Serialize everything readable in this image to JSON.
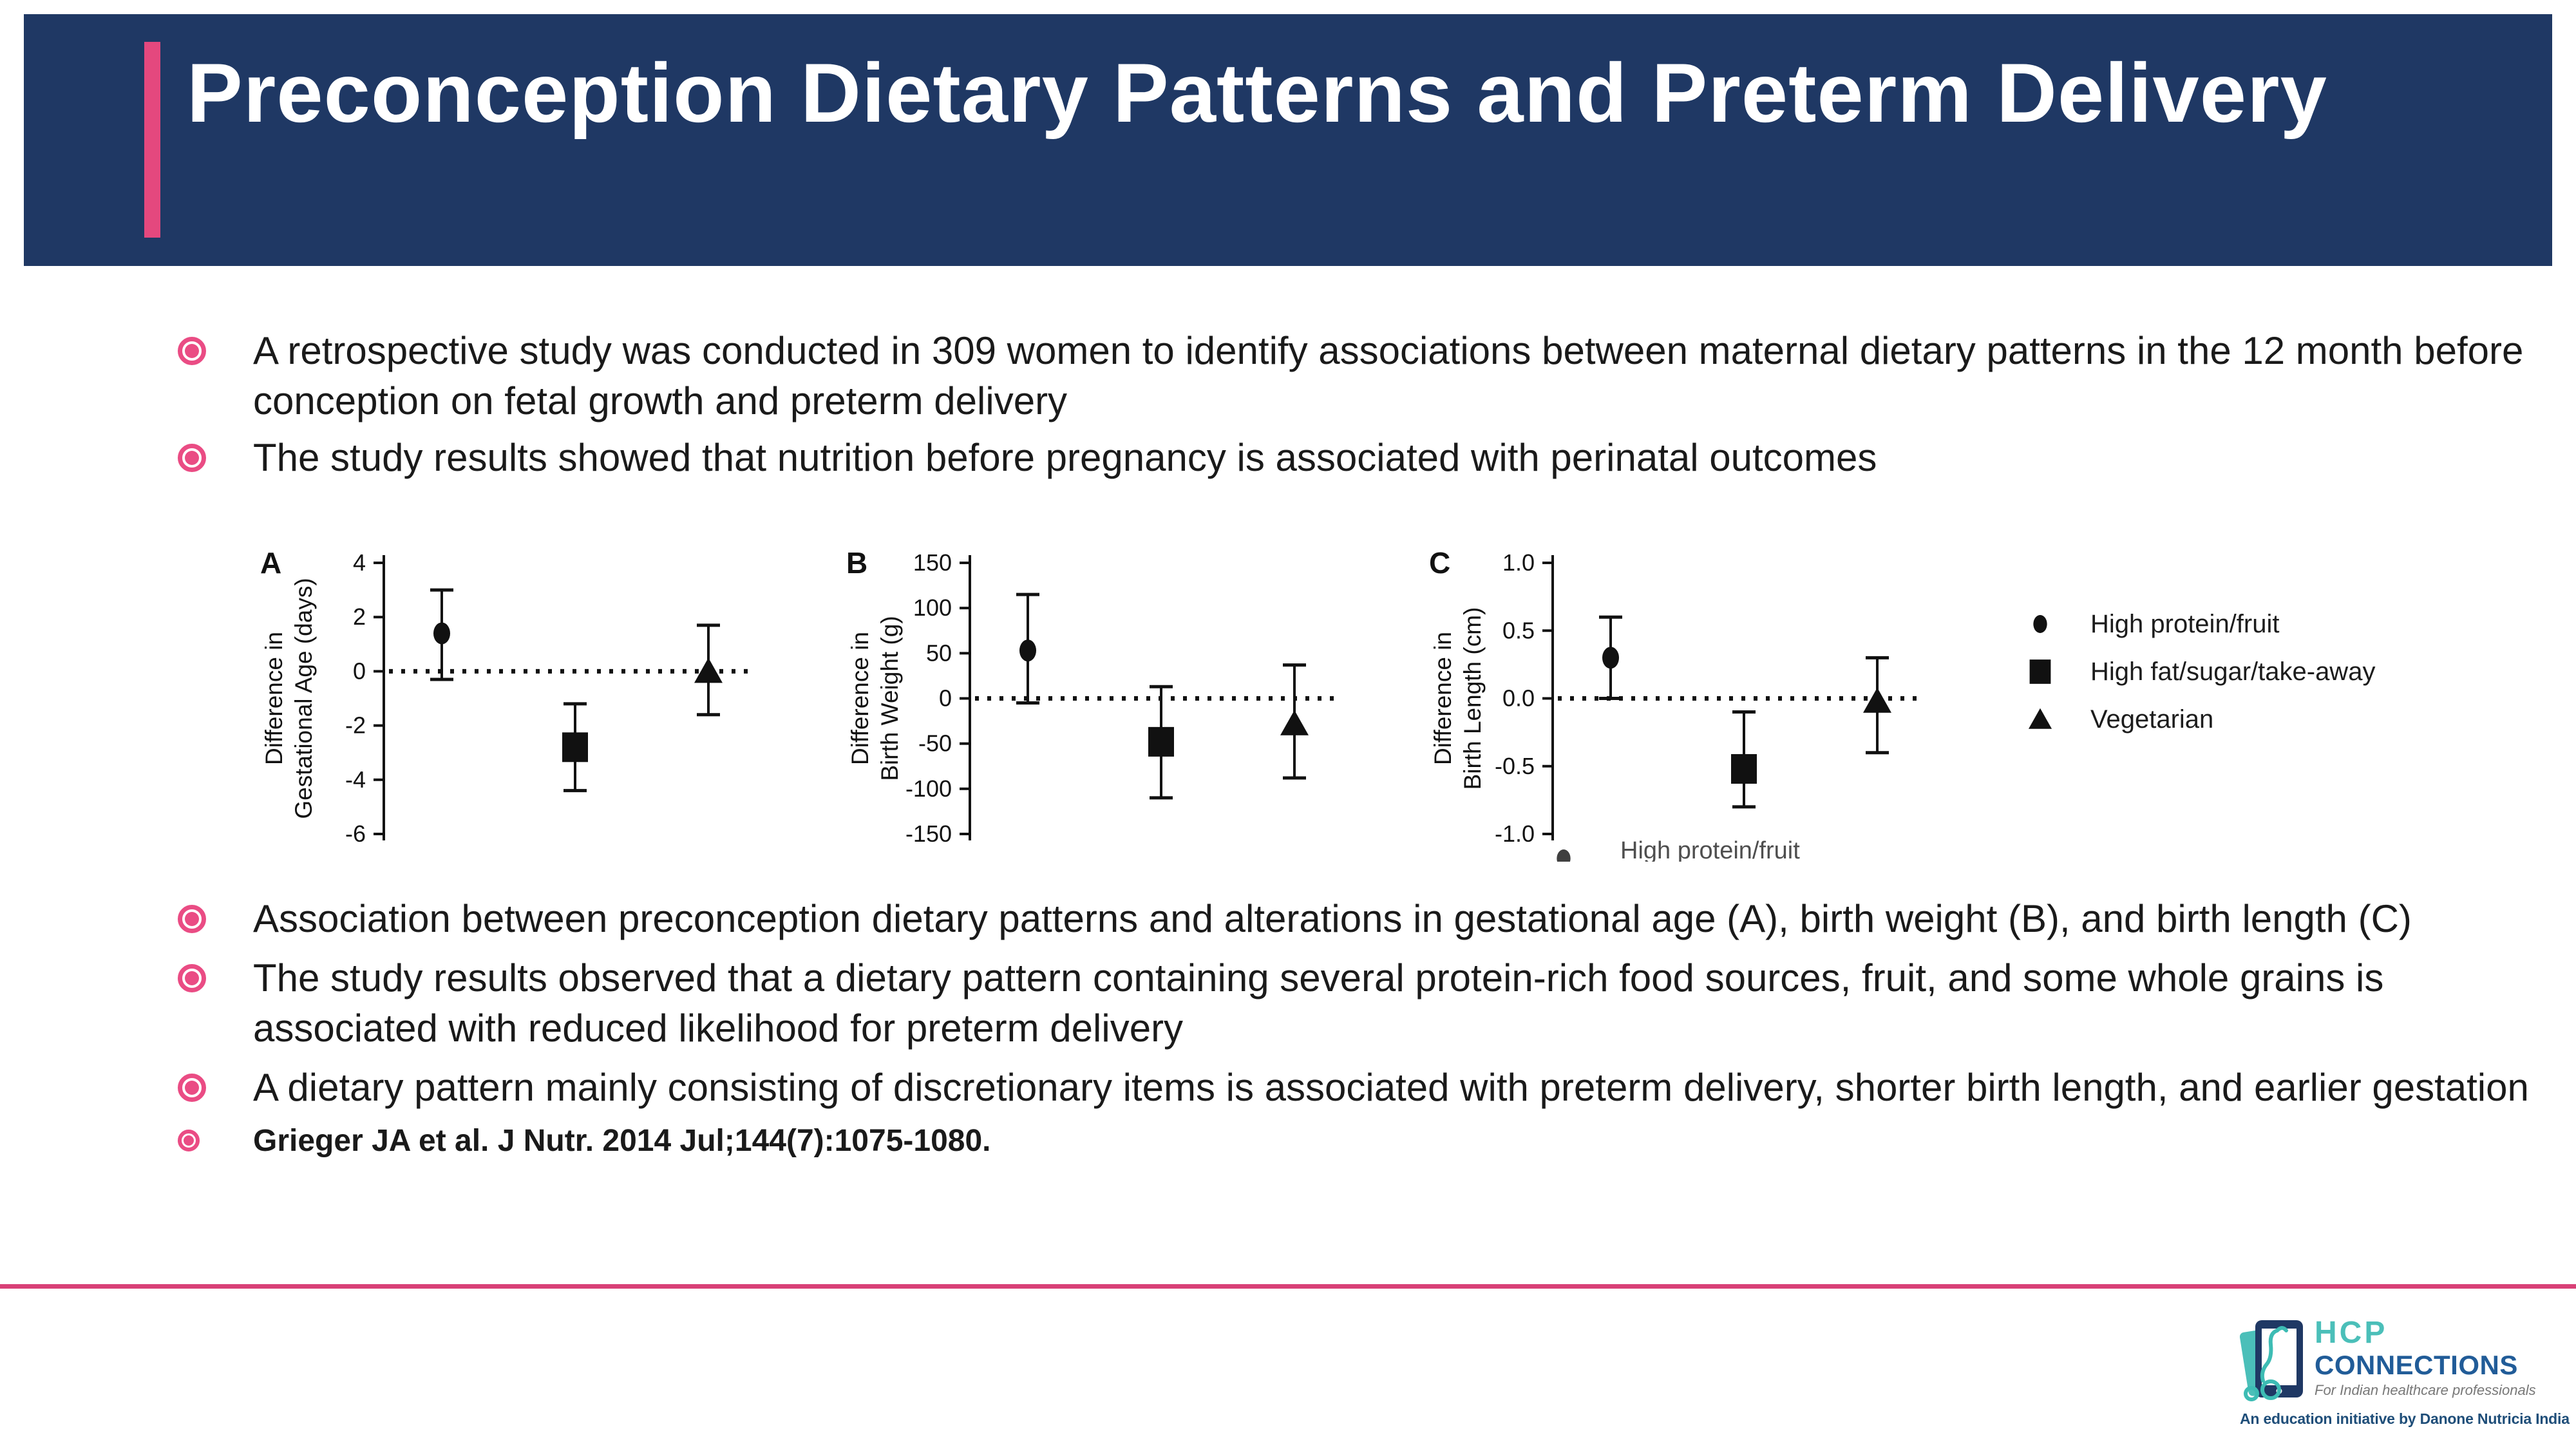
{
  "header": {
    "title": "Preconception Dietary Patterns and Preterm Delivery"
  },
  "bullets_top": [
    {
      "text": "A retrospective study was conducted in 309 women to identify associations between maternal dietary patterns in the 12 month before conception on fetal growth and preterm delivery"
    },
    {
      "text": "The study results showed that nutrition before pregnancy is associated with perinatal outcomes"
    }
  ],
  "bullets_bottom": [
    {
      "text": "Association between preconception dietary patterns and alterations in gestational age (A), birth weight (B), and birth length (C)"
    },
    {
      "text": "The study results observed that a dietary pattern containing several protein-rich food sources, fruit, and some whole grains is associated with reduced likelihood for preterm delivery"
    },
    {
      "text": "A dietary pattern mainly consisting of discretionary items is associated with preterm delivery, shorter birth length, and earlier gestation"
    },
    {
      "text": "Grieger JA et al.  J Nutr. 2014 Jul;144(7):1075-1080."
    }
  ],
  "chart_data": {
    "type": "scatter",
    "description": "Mean difference with 95% CI by preconception dietary pattern; dotted reference line at 0",
    "legend": {
      "position": "right",
      "items": [
        {
          "marker": "circle",
          "label": "High protein/fruit"
        },
        {
          "marker": "square",
          "label": "High fat/sugar/take-away"
        },
        {
          "marker": "triangle",
          "label": "Vegetarian"
        }
      ]
    },
    "cropped_legend_fragment": {
      "marker": "circle",
      "label": "High protein/fruit"
    },
    "charts": [
      {
        "panel": "A",
        "ylabel_lines": [
          "Difference in",
          "Gestational Age (days)"
        ],
        "ylim": [
          -6,
          4
        ],
        "ytick_values": [
          4,
          2,
          0,
          -2,
          -4,
          -6
        ],
        "ytick_labels": [
          "4",
          "2",
          "0",
          "-2",
          "-4",
          "-6"
        ],
        "zero_line": true,
        "series": [
          {
            "name": "High protein/fruit",
            "marker": "circle",
            "y": 1.4,
            "ci": [
              -0.3,
              3.0
            ]
          },
          {
            "name": "High fat/sugar/take-away",
            "marker": "square",
            "y": -2.8,
            "ci": [
              -4.4,
              -1.2
            ]
          },
          {
            "name": "Vegetarian",
            "marker": "triangle",
            "y": 0.0,
            "ci": [
              -1.6,
              1.7
            ]
          }
        ]
      },
      {
        "panel": "B",
        "ylabel_lines": [
          "Difference in",
          "Birth Weight (g)"
        ],
        "ylim": [
          -150,
          150
        ],
        "ytick_values": [
          150,
          100,
          50,
          0,
          -50,
          -100,
          -150
        ],
        "ytick_labels": [
          "150",
          "100",
          "50",
          "0",
          "-50",
          "-100",
          "-150"
        ],
        "zero_line": true,
        "series": [
          {
            "name": "High protein/fruit",
            "marker": "circle",
            "y": 53,
            "ci": [
              -5,
              115
            ]
          },
          {
            "name": "High fat/sugar/take-away",
            "marker": "square",
            "y": -48,
            "ci": [
              -110,
              13
            ]
          },
          {
            "name": "Vegetarian",
            "marker": "triangle",
            "y": -28,
            "ci": [
              -88,
              37
            ]
          }
        ]
      },
      {
        "panel": "C",
        "ylabel_lines": [
          "Difference in",
          "Birth Length (cm)"
        ],
        "ylim": [
          -1.0,
          1.0
        ],
        "ytick_values": [
          1.0,
          0.5,
          0.0,
          -0.5,
          -1.0
        ],
        "ytick_labels": [
          "1.0",
          "0.5",
          "0.0",
          "-0.5",
          "-1.0"
        ],
        "zero_line": true,
        "series": [
          {
            "name": "High protein/fruit",
            "marker": "circle",
            "y": 0.3,
            "ci": [
              0.0,
              0.6
            ]
          },
          {
            "name": "High fat/sugar/take-away",
            "marker": "square",
            "y": -0.52,
            "ci": [
              -0.8,
              -0.1
            ]
          },
          {
            "name": "Vegetarian",
            "marker": "triangle",
            "y": -0.02,
            "ci": [
              -0.4,
              0.3
            ]
          }
        ]
      }
    ]
  },
  "logo": {
    "hcp": "HCP",
    "connections": "CONNECTIONS",
    "tagline": "For Indian healthcare professionals",
    "initiative": "An education initiative by Danone Nutricia India"
  },
  "colors": {
    "header_navy": "#1F3864",
    "accent_pink": "#E4487E",
    "bullet_pink": "#EA4C84",
    "divider_pink": "#D84077",
    "chart_ink": "#111111",
    "logo_teal": "#4BBFB9",
    "logo_blue": "#215C98",
    "initiative_blue": "#1F4E79",
    "tagline_gray": "#787878"
  }
}
